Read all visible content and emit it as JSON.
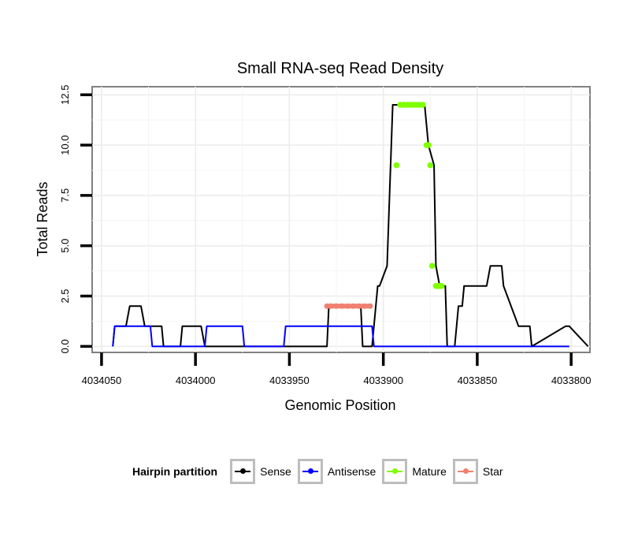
{
  "chart_data": {
    "type": "line",
    "title": "Small RNA-seq Read Density",
    "xlabel": "Genomic Position",
    "ylabel": "Total Reads",
    "xlim": [
      4034055,
      4033790
    ],
    "ylim": [
      -0.3,
      12.9
    ],
    "x_reversed": true,
    "xticks": [
      4034050,
      4034000,
      4033950,
      4033900,
      4033850,
      4033800
    ],
    "xtick_labels": [
      "4034050",
      "4034000",
      "4033950",
      "4033900",
      "4033850",
      "4033800"
    ],
    "yticks": [
      0,
      2.5,
      5,
      7.5,
      10,
      12.5
    ],
    "ytick_labels": [
      "0.0",
      "2.5",
      "5.0",
      "7.5",
      "10.0",
      "12.5"
    ],
    "grid": true,
    "legend_position": "bottom",
    "legend_title": "Hairpin partition",
    "series": [
      {
        "name": "Sense",
        "color": "#000000",
        "style": "line",
        "x": [
          4034044,
          4034043,
          4034037,
          4034035,
          4034029,
          4034027,
          4034022,
          4034018,
          4034017,
          4034008,
          4034007,
          4033997,
          4033995,
          4033976,
          4033975,
          4033930,
          4033929,
          4033912,
          4033911,
          4033906,
          4033903,
          4033902,
          4033898,
          4033895,
          4033893,
          4033891,
          4033889,
          4033884,
          4033882,
          4033879,
          4033878,
          4033876,
          4033873,
          4033872,
          4033870,
          4033867,
          4033866,
          4033862,
          4033860,
          4033858,
          4033857,
          4033845,
          4033843,
          4033841,
          4033837,
          4033836,
          4033828,
          4033822,
          4033821,
          4033803,
          4033801,
          4033791
        ],
        "y": [
          0,
          1,
          1,
          2,
          2,
          1,
          1,
          1,
          0,
          0,
          1,
          1,
          0,
          0,
          0,
          0,
          2,
          2,
          0,
          0,
          3,
          3,
          4,
          12,
          12,
          12,
          12,
          12,
          12,
          12,
          12,
          10,
          9,
          4,
          3,
          3,
          0,
          0,
          2,
          2,
          3,
          3,
          4,
          4,
          4,
          3,
          1,
          1,
          0,
          1,
          1,
          0
        ]
      },
      {
        "name": "Antisense",
        "color": "#0000ff",
        "style": "line",
        "x": [
          4034044,
          4034043,
          4034024,
          4034023,
          4033995,
          4033994,
          4033975,
          4033974,
          4033953,
          4033952,
          4033906,
          4033905,
          4033888,
          4033887,
          4033801
        ],
        "y": [
          0,
          1,
          1,
          0,
          0,
          1,
          1,
          0,
          0,
          1,
          1,
          0,
          0,
          0,
          0
        ]
      },
      {
        "name": "Mature",
        "color": "#7fff00",
        "style": "points",
        "x": [
          4033893,
          4033891,
          4033889,
          4033887,
          4033885,
          4033883,
          4033881,
          4033879,
          4033877,
          4033876,
          4033875,
          4033874,
          4033872,
          4033871,
          4033870,
          4033869
        ],
        "y": [
          9,
          12,
          12,
          12,
          12,
          12,
          12,
          12,
          10,
          10,
          9,
          4,
          3,
          3,
          3,
          3
        ]
      },
      {
        "name": "Star",
        "color": "#f08070",
        "style": "band",
        "x": [
          4033930,
          4033928,
          4033925,
          4033922,
          4033919,
          4033916,
          4033913,
          4033910,
          4033907
        ],
        "y": [
          2,
          2,
          2,
          2,
          2,
          2,
          2,
          2,
          2
        ]
      }
    ]
  }
}
